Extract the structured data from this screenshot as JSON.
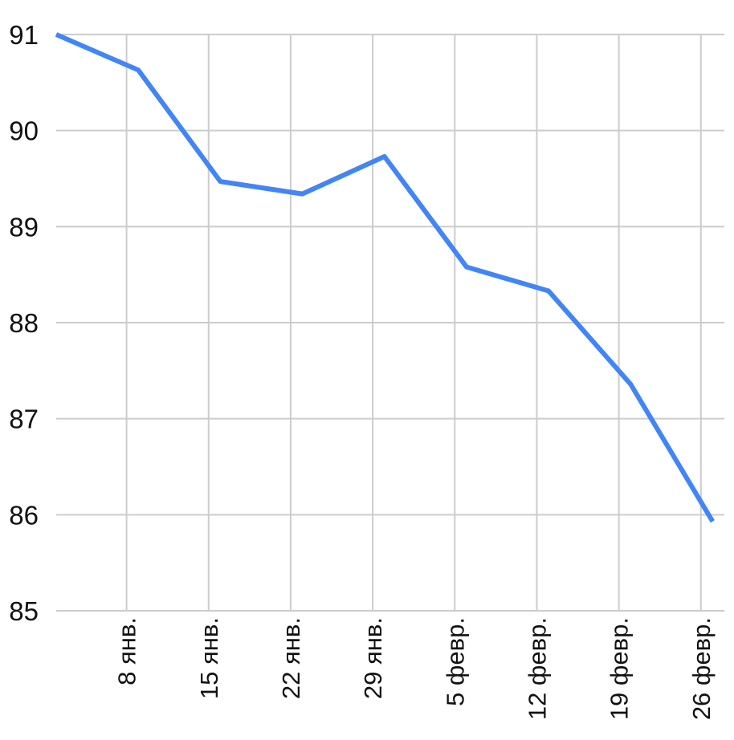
{
  "chart_data": {
    "type": "line",
    "title": "",
    "xlabel": "",
    "ylabel": "",
    "grid": true,
    "legend": "none",
    "ylim": [
      85,
      91
    ],
    "yticks": [
      "85",
      "86",
      "87",
      "88",
      "89",
      "90",
      "91"
    ],
    "x_ticks": [
      {
        "date": "2024-01-08",
        "label": "8 янв."
      },
      {
        "date": "2024-01-15",
        "label": "15 янв."
      },
      {
        "date": "2024-01-22",
        "label": "22 янв."
      },
      {
        "date": "2024-01-29",
        "label": "29 янв."
      },
      {
        "date": "2024-02-05",
        "label": "5 февр."
      },
      {
        "date": "2024-02-12",
        "label": "12 февр."
      },
      {
        "date": "2024-02-19",
        "label": "19 февр."
      },
      {
        "date": "2024-02-26",
        "label": "26 февр."
      }
    ],
    "series": [
      {
        "color": "#4285f4",
        "points": [
          {
            "x": "2024-01-02",
            "y": 91.0
          },
          {
            "x": "2024-01-09",
            "y": 90.63
          },
          {
            "x": "2024-01-16",
            "y": 89.47
          },
          {
            "x": "2024-01-23",
            "y": 89.34
          },
          {
            "x": "2024-01-30",
            "y": 89.73
          },
          {
            "x": "2024-02-06",
            "y": 88.58
          },
          {
            "x": "2024-02-13",
            "y": 88.33
          },
          {
            "x": "2024-02-20",
            "y": 87.36
          },
          {
            "x": "2024-02-27",
            "y": 85.93
          }
        ]
      }
    ]
  }
}
